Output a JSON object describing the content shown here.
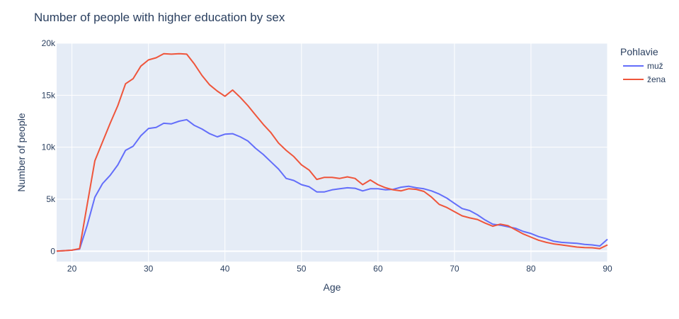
{
  "chart_data": {
    "type": "line",
    "title": "Number of people with higher education by sex",
    "xlabel": "Age",
    "ylabel": "Number of people",
    "xlim": [
      18,
      90
    ],
    "ylim": [
      -1000,
      20000
    ],
    "x_ticks": [
      20,
      30,
      40,
      50,
      60,
      70,
      80,
      90
    ],
    "y_ticks": [
      0,
      5000,
      10000,
      15000,
      20000
    ],
    "y_tick_labels": [
      "0",
      "5k",
      "10k",
      "15k",
      "20k"
    ],
    "grid": true,
    "legend": {
      "title": "Pohlavie",
      "position": "right"
    },
    "x": [
      18,
      19,
      20,
      21,
      22,
      23,
      24,
      25,
      26,
      27,
      28,
      29,
      30,
      31,
      32,
      33,
      34,
      35,
      36,
      37,
      38,
      39,
      40,
      41,
      42,
      43,
      44,
      45,
      46,
      47,
      48,
      49,
      50,
      51,
      52,
      53,
      54,
      55,
      56,
      57,
      58,
      59,
      60,
      61,
      62,
      63,
      64,
      65,
      66,
      67,
      68,
      69,
      70,
      71,
      72,
      73,
      74,
      75,
      76,
      77,
      78,
      79,
      80,
      81,
      82,
      83,
      84,
      85,
      86,
      87,
      88,
      89,
      90
    ],
    "series": [
      {
        "name": "muž",
        "color": "#636efa",
        "values": [
          0,
          50,
          100,
          200,
          2500,
          5200,
          6500,
          7300,
          8300,
          9700,
          10100,
          11100,
          11800,
          11900,
          12300,
          12250,
          12500,
          12650,
          12100,
          11750,
          11300,
          11000,
          11250,
          11300,
          11000,
          10600,
          9900,
          9300,
          8600,
          7900,
          7000,
          6800,
          6400,
          6200,
          5700,
          5700,
          5900,
          6000,
          6100,
          6050,
          5800,
          6000,
          6000,
          5900,
          5950,
          6150,
          6250,
          6100,
          6000,
          5800,
          5500,
          5100,
          4600,
          4100,
          3900,
          3500,
          3000,
          2600,
          2500,
          2350,
          2200,
          1900,
          1700,
          1400,
          1200,
          950,
          850,
          800,
          750,
          650,
          600,
          500,
          1150
        ]
      },
      {
        "name": "žena",
        "color": "#ef553b",
        "values": [
          0,
          50,
          100,
          250,
          4500,
          8700,
          10500,
          12300,
          14000,
          16100,
          16600,
          17800,
          18400,
          18600,
          19000,
          18950,
          19000,
          18950,
          18000,
          16900,
          16000,
          15400,
          14900,
          15500,
          14800,
          14000,
          13100,
          12200,
          11400,
          10400,
          9700,
          9100,
          8300,
          7800,
          6900,
          7100,
          7100,
          7000,
          7150,
          7000,
          6400,
          6850,
          6400,
          6100,
          5900,
          5800,
          6000,
          5950,
          5750,
          5200,
          4500,
          4200,
          3800,
          3400,
          3200,
          3050,
          2700,
          2400,
          2600,
          2450,
          2050,
          1650,
          1350,
          1050,
          850,
          700,
          600,
          500,
          400,
          350,
          330,
          250,
          600
        ]
      }
    ]
  }
}
